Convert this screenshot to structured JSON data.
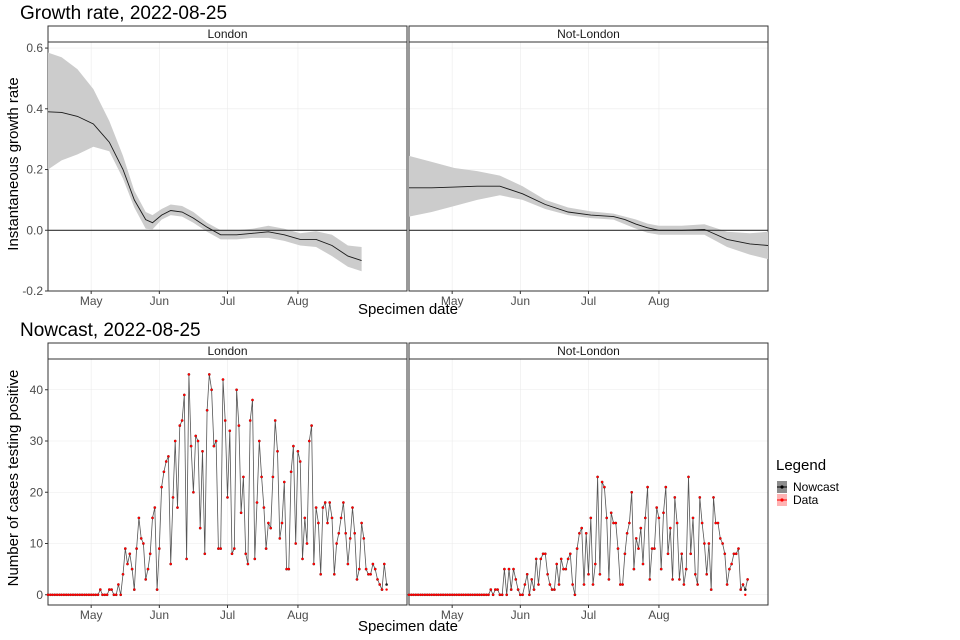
{
  "chart_data": [
    {
      "type": "line",
      "title": "Growth rate, 2022-08-25",
      "xlabel": "Specimen date",
      "ylabel": "Instantaneous growth rate",
      "ylim": [
        -0.2,
        0.62
      ],
      "yticks": [
        -0.2,
        0.0,
        0.2,
        0.4,
        0.6
      ],
      "ytick_labels": [
        "-0.2",
        "0.0",
        "0.2",
        "0.4",
        "0.6"
      ],
      "xlim": [
        0,
        158
      ],
      "xticks": [
        19,
        49,
        79,
        110
      ],
      "xtick_labels": [
        "May",
        "Jun",
        "Jul",
        "Aug"
      ],
      "hline": 0,
      "facets": [
        {
          "label": "London",
          "x": [
            0,
            6,
            13,
            20,
            27,
            33,
            38,
            43,
            46,
            50,
            54,
            59,
            64,
            70,
            76,
            83,
            90,
            97,
            104,
            111,
            118,
            125,
            132,
            138
          ],
          "mean": [
            0.39,
            0.388,
            0.375,
            0.35,
            0.29,
            0.2,
            0.1,
            0.035,
            0.025,
            0.05,
            0.065,
            0.06,
            0.04,
            0.01,
            -0.015,
            -0.015,
            -0.01,
            -0.005,
            -0.015,
            -0.03,
            -0.03,
            -0.05,
            -0.085,
            -0.1
          ],
          "lower": [
            0.2,
            0.23,
            0.25,
            0.275,
            0.26,
            0.17,
            0.075,
            0.005,
            0.003,
            0.035,
            0.05,
            0.045,
            0.025,
            -0.005,
            -0.03,
            -0.03,
            -0.025,
            -0.025,
            -0.035,
            -0.05,
            -0.055,
            -0.085,
            -0.12,
            -0.135
          ],
          "upper": [
            0.585,
            0.57,
            0.53,
            0.465,
            0.36,
            0.245,
            0.13,
            0.06,
            0.05,
            0.07,
            0.085,
            0.08,
            0.06,
            0.025,
            0.0,
            0.0,
            0.005,
            0.015,
            0.005,
            -0.01,
            -0.003,
            -0.015,
            -0.05,
            -0.055
          ]
        },
        {
          "label": "Not-London",
          "x": [
            0,
            10,
            20,
            30,
            40,
            50,
            60,
            70,
            80,
            90,
            95,
            100,
            105,
            110,
            120,
            130,
            140,
            150,
            158
          ],
          "mean": [
            0.14,
            0.14,
            0.142,
            0.145,
            0.145,
            0.12,
            0.085,
            0.06,
            0.05,
            0.045,
            0.035,
            0.02,
            0.008,
            0.0,
            0.0,
            0.003,
            -0.03,
            -0.045,
            -0.05
          ],
          "lower": [
            0.045,
            0.06,
            0.08,
            0.1,
            0.115,
            0.1,
            0.07,
            0.05,
            0.04,
            0.035,
            0.02,
            0.005,
            -0.008,
            -0.015,
            -0.015,
            -0.015,
            -0.055,
            -0.08,
            -0.095
          ],
          "upper": [
            0.245,
            0.225,
            0.205,
            0.195,
            0.18,
            0.145,
            0.1,
            0.075,
            0.062,
            0.055,
            0.045,
            0.035,
            0.022,
            0.015,
            0.015,
            0.02,
            -0.005,
            -0.01,
            -0.005
          ]
        }
      ]
    },
    {
      "type": "line",
      "title": "Nowcast, 2022-08-25",
      "xlabel": "Specimen date",
      "ylabel": "Number of cases testing positive",
      "ylim": [
        -2,
        46
      ],
      "yticks": [
        0,
        10,
        20,
        30,
        40
      ],
      "ytick_labels": [
        "0",
        "10",
        "20",
        "30",
        "40"
      ],
      "xlim": [
        0,
        158
      ],
      "xticks": [
        19,
        49,
        79,
        110
      ],
      "xtick_labels": [
        "May",
        "Jun",
        "Jul",
        "Aug"
      ],
      "legend": {
        "title": "Legend",
        "position": "right",
        "entries": [
          {
            "label": "Nowcast",
            "color": "#222222"
          },
          {
            "label": "Data",
            "color": "#ff0000"
          }
        ]
      },
      "facets": [
        {
          "label": "London",
          "start_x": 0,
          "values": [
            0,
            0,
            0,
            0,
            0,
            0,
            0,
            0,
            0,
            0,
            0,
            0,
            0,
            0,
            0,
            0,
            0,
            0,
            0,
            0,
            0,
            0,
            0,
            1,
            0,
            0,
            0,
            1,
            1,
            0,
            0,
            2,
            0,
            4,
            9,
            6,
            8,
            5,
            1,
            9,
            15,
            11,
            10,
            3,
            5,
            8,
            15,
            17,
            1,
            9,
            21,
            24,
            26,
            27,
            6,
            19,
            30,
            17,
            33,
            34,
            39,
            7,
            43,
            29,
            20,
            31,
            30,
            13,
            28,
            8,
            36,
            43,
            40,
            29,
            30,
            9,
            9,
            42,
            34,
            19,
            32,
            8,
            9,
            40,
            33,
            16,
            23,
            8,
            6,
            34,
            38,
            7,
            18,
            30,
            23,
            17,
            9,
            14,
            13,
            23,
            34,
            28,
            11,
            14,
            22,
            5,
            5,
            24,
            29,
            10,
            28,
            26,
            7,
            15,
            10,
            30,
            33,
            6,
            17,
            14,
            4,
            17,
            18,
            14,
            18,
            15,
            4,
            10,
            12,
            15,
            18,
            12,
            6,
            11,
            17,
            12,
            3,
            5,
            14,
            11,
            5,
            4,
            4,
            6,
            5,
            3,
            2,
            1,
            6,
            2
          ],
          "data": [
            0,
            0,
            0,
            0,
            0,
            0,
            0,
            0,
            0,
            0,
            0,
            0,
            0,
            0,
            0,
            0,
            0,
            0,
            0,
            0,
            0,
            0,
            0,
            1,
            0,
            0,
            0,
            1,
            1,
            0,
            0,
            2,
            0,
            4,
            9,
            6,
            8,
            5,
            1,
            9,
            15,
            11,
            10,
            3,
            5,
            8,
            15,
            17,
            1,
            9,
            21,
            24,
            26,
            27,
            6,
            19,
            30,
            17,
            33,
            34,
            39,
            7,
            43,
            29,
            20,
            31,
            30,
            13,
            28,
            8,
            36,
            43,
            40,
            29,
            30,
            9,
            9,
            42,
            34,
            19,
            32,
            8,
            9,
            40,
            33,
            16,
            23,
            8,
            6,
            34,
            38,
            7,
            18,
            30,
            23,
            17,
            9,
            14,
            13,
            23,
            34,
            28,
            11,
            14,
            22,
            5,
            5,
            24,
            29,
            10,
            28,
            26,
            7,
            15,
            10,
            30,
            33,
            6,
            17,
            14,
            4,
            17,
            18,
            14,
            18,
            15,
            4,
            10,
            12,
            15,
            18,
            12,
            6,
            11,
            17,
            12,
            3,
            5,
            14,
            11,
            5,
            4,
            4,
            6,
            5,
            3,
            2,
            1,
            6,
            1
          ]
        },
        {
          "label": "Not-London",
          "start_x": 0,
          "values": [
            0,
            0,
            0,
            0,
            0,
            0,
            0,
            0,
            0,
            0,
            0,
            0,
            0,
            0,
            0,
            0,
            0,
            0,
            0,
            0,
            0,
            0,
            0,
            0,
            0,
            0,
            0,
            0,
            0,
            0,
            0,
            0,
            0,
            0,
            0,
            0,
            1,
            0,
            1,
            1,
            0,
            0,
            5,
            0,
            5,
            1,
            5,
            3,
            1,
            0,
            0,
            2,
            4,
            0,
            3,
            1,
            7,
            2,
            7,
            8,
            8,
            4,
            2,
            1,
            1,
            6,
            2,
            7,
            5,
            5,
            7,
            8,
            2,
            0,
            9,
            12,
            13,
            2,
            12,
            4,
            15,
            2,
            6,
            23,
            4,
            22,
            21,
            15,
            3,
            16,
            14,
            14,
            9,
            2,
            2,
            8,
            12,
            14,
            20,
            5,
            11,
            9,
            13,
            6,
            15,
            21,
            3,
            9,
            9,
            17,
            15,
            5,
            16,
            21,
            8,
            13,
            3,
            19,
            14,
            3,
            8,
            2,
            5,
            23,
            8,
            15,
            4,
            2,
            19,
            14,
            10,
            4,
            10,
            1,
            19,
            14,
            14,
            11,
            10,
            8,
            2,
            5,
            6,
            8,
            8,
            9,
            1,
            2,
            1,
            3
          ],
          "data": [
            0,
            0,
            0,
            0,
            0,
            0,
            0,
            0,
            0,
            0,
            0,
            0,
            0,
            0,
            0,
            0,
            0,
            0,
            0,
            0,
            0,
            0,
            0,
            0,
            0,
            0,
            0,
            0,
            0,
            0,
            0,
            0,
            0,
            0,
            0,
            0,
            1,
            0,
            1,
            1,
            0,
            0,
            5,
            0,
            5,
            1,
            5,
            3,
            1,
            0,
            0,
            2,
            4,
            0,
            3,
            1,
            7,
            2,
            7,
            8,
            8,
            4,
            2,
            1,
            1,
            6,
            2,
            7,
            5,
            5,
            7,
            8,
            2,
            0,
            9,
            12,
            13,
            2,
            12,
            4,
            15,
            2,
            6,
            23,
            4,
            22,
            21,
            15,
            3,
            16,
            14,
            14,
            9,
            2,
            2,
            8,
            12,
            14,
            20,
            5,
            11,
            9,
            13,
            6,
            15,
            21,
            3,
            9,
            9,
            17,
            15,
            5,
            16,
            21,
            8,
            13,
            3,
            19,
            14,
            3,
            8,
            2,
            5,
            23,
            8,
            15,
            4,
            2,
            19,
            14,
            10,
            4,
            10,
            1,
            19,
            14,
            14,
            11,
            10,
            8,
            2,
            5,
            6,
            8,
            8,
            9,
            1,
            2,
            0,
            3
          ]
        }
      ]
    }
  ]
}
